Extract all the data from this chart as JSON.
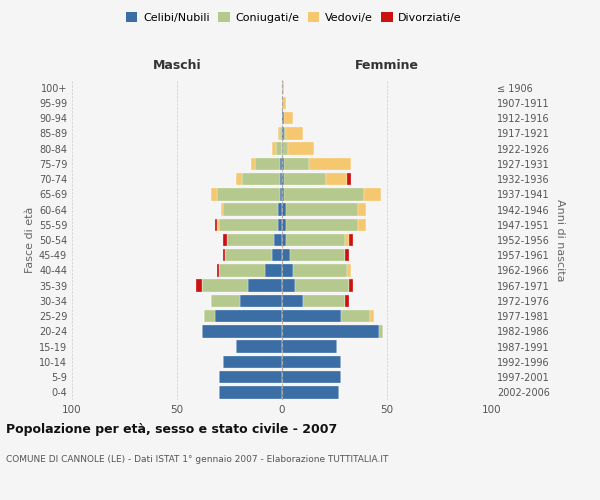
{
  "age_groups": [
    "0-4",
    "5-9",
    "10-14",
    "15-19",
    "20-24",
    "25-29",
    "30-34",
    "35-39",
    "40-44",
    "45-49",
    "50-54",
    "55-59",
    "60-64",
    "65-69",
    "70-74",
    "75-79",
    "80-84",
    "85-89",
    "90-94",
    "95-99",
    "100+"
  ],
  "birth_years": [
    "2002-2006",
    "1997-2001",
    "1992-1996",
    "1987-1991",
    "1982-1986",
    "1977-1981",
    "1972-1976",
    "1967-1971",
    "1962-1966",
    "1957-1961",
    "1952-1956",
    "1947-1951",
    "1942-1946",
    "1937-1941",
    "1932-1936",
    "1927-1931",
    "1922-1926",
    "1917-1921",
    "1912-1916",
    "1907-1911",
    "≤ 1906"
  ],
  "colors": {
    "celibi": "#3a6ea5",
    "coniugati": "#b5c98e",
    "vedovi": "#f5c76e",
    "divorziati": "#cc1111"
  },
  "males": {
    "celibi": [
      30,
      30,
      28,
      22,
      38,
      32,
      20,
      16,
      8,
      5,
      4,
      2,
      2,
      1,
      1,
      1,
      0,
      0,
      0,
      0,
      0
    ],
    "coniugati": [
      0,
      0,
      0,
      0,
      0,
      5,
      14,
      22,
      22,
      22,
      22,
      28,
      26,
      30,
      18,
      12,
      3,
      1,
      0,
      0,
      0
    ],
    "vedovi": [
      0,
      0,
      0,
      0,
      0,
      0,
      0,
      0,
      0,
      0,
      0,
      1,
      1,
      3,
      3,
      2,
      2,
      1,
      0,
      0,
      0
    ],
    "divorziati": [
      0,
      0,
      0,
      0,
      0,
      0,
      0,
      3,
      1,
      1,
      2,
      1,
      0,
      0,
      0,
      0,
      0,
      0,
      0,
      0,
      0
    ]
  },
  "females": {
    "celibi": [
      27,
      28,
      28,
      26,
      46,
      28,
      10,
      6,
      5,
      4,
      2,
      2,
      2,
      1,
      1,
      1,
      0,
      1,
      1,
      0,
      0
    ],
    "coniugati": [
      0,
      0,
      0,
      0,
      2,
      14,
      20,
      26,
      26,
      26,
      28,
      34,
      34,
      38,
      20,
      12,
      3,
      1,
      0,
      0,
      0
    ],
    "vedovi": [
      0,
      0,
      0,
      0,
      0,
      2,
      0,
      0,
      2,
      0,
      2,
      4,
      4,
      8,
      10,
      20,
      12,
      8,
      4,
      2,
      1
    ],
    "divorziati": [
      0,
      0,
      0,
      0,
      0,
      0,
      2,
      2,
      0,
      2,
      2,
      0,
      0,
      0,
      2,
      0,
      0,
      0,
      0,
      0,
      0
    ]
  },
  "xlim": 100,
  "title": "Popolazione per età, sesso e stato civile - 2007",
  "subtitle": "COMUNE DI CANNOLE (LE) - Dati ISTAT 1° gennaio 2007 - Elaborazione TUTTITALIA.IT",
  "xlabel_left": "Maschi",
  "xlabel_right": "Femmine",
  "ylabel_left": "Fasce di età",
  "ylabel_right": "Anni di nascita",
  "background_color": "#f5f5f5",
  "grid_color": "#cccccc"
}
